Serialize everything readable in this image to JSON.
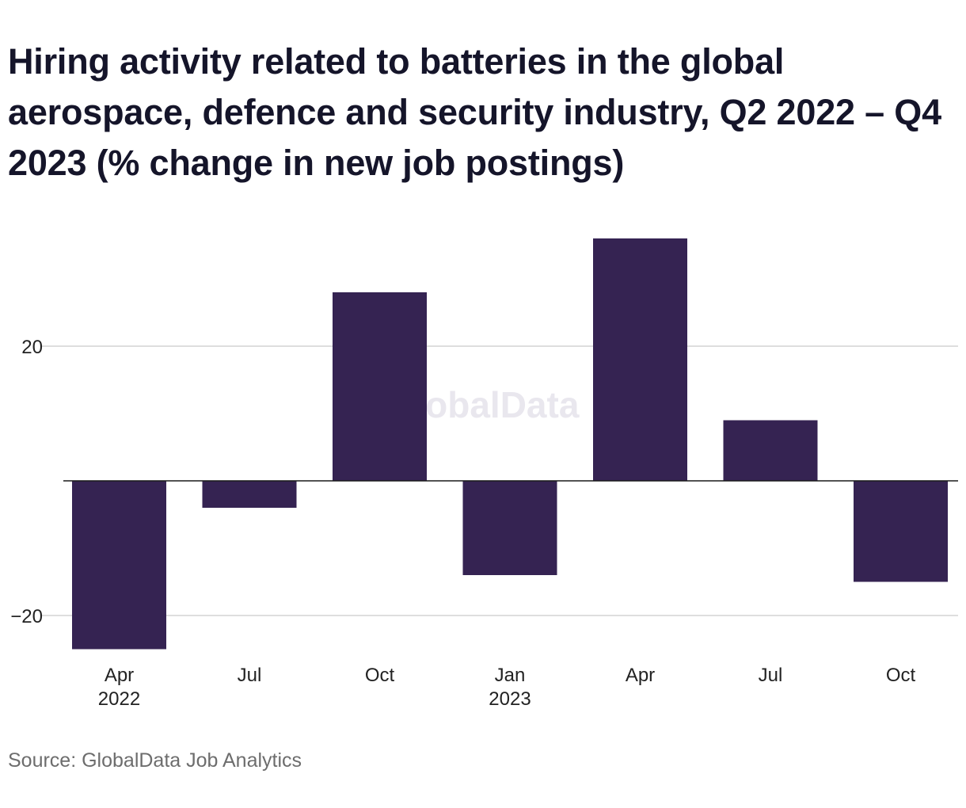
{
  "title": "Hiring activity related to batteries in the global aerospace, defence and security industry, Q2 2022 – Q4 2023 (% change in new job postings)",
  "source": "Source: GlobalData Job Analytics",
  "watermark": "GlobalData",
  "colors": {
    "bar": "#352352",
    "grid": "#d4d4d4",
    "zero_line": "#1a1a1a",
    "watermark": "#e9e7ee"
  },
  "chart_data": {
    "type": "bar",
    "title": "Hiring activity related to batteries in the global aerospace, defence and security industry, Q2 2022 – Q4 2023 (% change in new job postings)",
    "categories": [
      "Apr",
      "Jul",
      "Oct",
      "Jan",
      "Apr",
      "Jul",
      "Oct"
    ],
    "category_sublabels": [
      "2022",
      "",
      "",
      "2023",
      "",
      "",
      ""
    ],
    "values": [
      -25,
      -4,
      28,
      -14,
      36,
      9,
      -15
    ],
    "ylim": [
      -25,
      36
    ],
    "yticks": [
      20,
      -20
    ],
    "ytick_labels": [
      "20",
      "−20"
    ],
    "grid": true,
    "legend": "none"
  }
}
